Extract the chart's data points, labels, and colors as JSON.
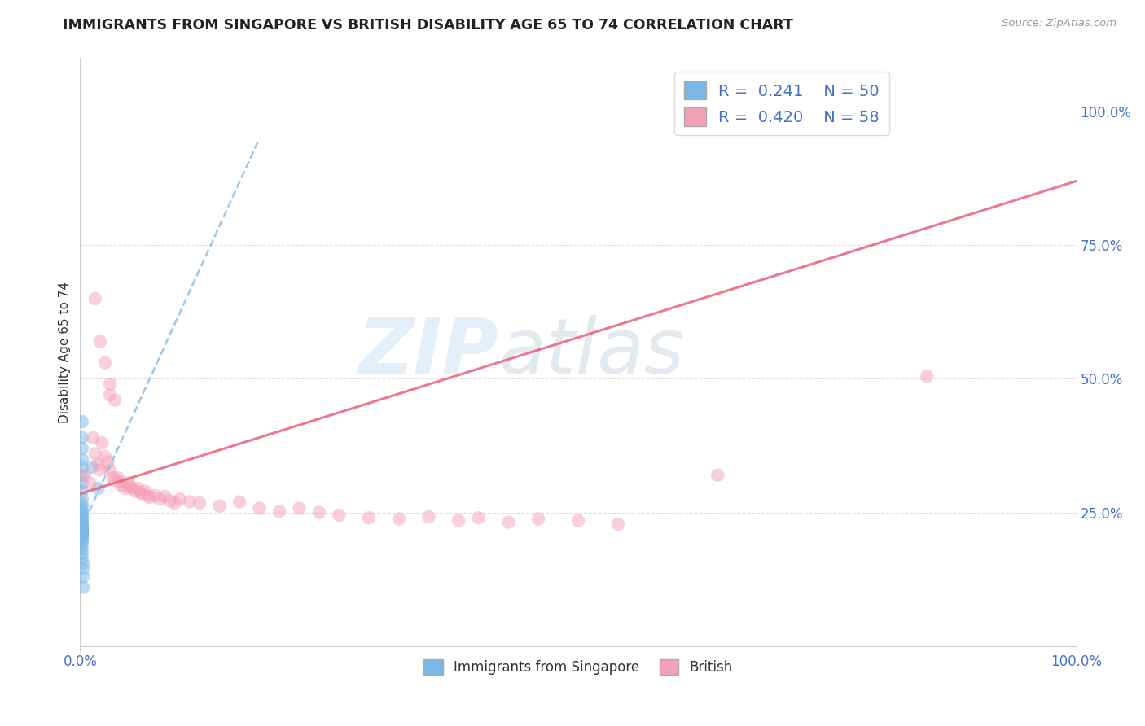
{
  "title": "IMMIGRANTS FROM SINGAPORE VS BRITISH DISABILITY AGE 65 TO 74 CORRELATION CHART",
  "source_text": "Source: ZipAtlas.com",
  "ylabel": "Disability Age 65 to 74",
  "xlim": [
    0.0,
    1.0
  ],
  "ylim": [
    0.0,
    1.1
  ],
  "xtick_positions": [
    0.0,
    1.0
  ],
  "xtick_labels": [
    "0.0%",
    "100.0%"
  ],
  "ytick_positions": [
    0.25,
    0.5,
    0.75,
    1.0
  ],
  "ytick_labels": [
    "25.0%",
    "50.0%",
    "75.0%",
    "100.0%"
  ],
  "legend_R1": "0.241",
  "legend_N1": "50",
  "legend_R2": "0.420",
  "legend_N2": "58",
  "color_blue": "#7ab8e8",
  "color_pink": "#f4a0b8",
  "trendline_blue_color": "#7ab8e8",
  "trendline_pink_color": "#e8607a",
  "watermark_zip": "ZIP",
  "watermark_atlas": "atlas",
  "blue_scatter": [
    [
      0.002,
      0.42
    ],
    [
      0.002,
      0.39
    ],
    [
      0.002,
      0.37
    ],
    [
      0.002,
      0.35
    ],
    [
      0.002,
      0.335
    ],
    [
      0.002,
      0.32
    ],
    [
      0.002,
      0.305
    ],
    [
      0.002,
      0.29
    ],
    [
      0.002,
      0.275
    ],
    [
      0.002,
      0.265
    ],
    [
      0.002,
      0.258
    ],
    [
      0.002,
      0.252
    ],
    [
      0.002,
      0.247
    ],
    [
      0.002,
      0.243
    ],
    [
      0.002,
      0.238
    ],
    [
      0.002,
      0.234
    ],
    [
      0.002,
      0.231
    ],
    [
      0.002,
      0.228
    ],
    [
      0.002,
      0.226
    ],
    [
      0.002,
      0.224
    ],
    [
      0.002,
      0.222
    ],
    [
      0.002,
      0.221
    ],
    [
      0.002,
      0.22
    ],
    [
      0.002,
      0.219
    ],
    [
      0.002,
      0.218
    ],
    [
      0.002,
      0.218
    ],
    [
      0.002,
      0.217
    ],
    [
      0.002,
      0.216
    ],
    [
      0.002,
      0.216
    ],
    [
      0.002,
      0.215
    ],
    [
      0.002,
      0.215
    ],
    [
      0.002,
      0.214
    ],
    [
      0.002,
      0.213
    ],
    [
      0.002,
      0.212
    ],
    [
      0.002,
      0.21
    ],
    [
      0.002,
      0.208
    ],
    [
      0.002,
      0.206
    ],
    [
      0.002,
      0.203
    ],
    [
      0.002,
      0.2
    ],
    [
      0.002,
      0.196
    ],
    [
      0.002,
      0.19
    ],
    [
      0.002,
      0.183
    ],
    [
      0.002,
      0.174
    ],
    [
      0.002,
      0.165
    ],
    [
      0.012,
      0.335
    ],
    [
      0.018,
      0.295
    ],
    [
      0.003,
      0.155
    ],
    [
      0.003,
      0.145
    ],
    [
      0.003,
      0.13
    ],
    [
      0.003,
      0.11
    ]
  ],
  "pink_scatter": [
    [
      0.005,
      0.32
    ],
    [
      0.01,
      0.305
    ],
    [
      0.013,
      0.39
    ],
    [
      0.015,
      0.36
    ],
    [
      0.018,
      0.34
    ],
    [
      0.02,
      0.33
    ],
    [
      0.022,
      0.38
    ],
    [
      0.025,
      0.355
    ],
    [
      0.028,
      0.345
    ],
    [
      0.03,
      0.33
    ],
    [
      0.033,
      0.315
    ],
    [
      0.035,
      0.31
    ],
    [
      0.038,
      0.315
    ],
    [
      0.04,
      0.308
    ],
    [
      0.042,
      0.3
    ],
    [
      0.045,
      0.295
    ],
    [
      0.048,
      0.305
    ],
    [
      0.05,
      0.3
    ],
    [
      0.052,
      0.295
    ],
    [
      0.055,
      0.29
    ],
    [
      0.058,
      0.295
    ],
    [
      0.06,
      0.288
    ],
    [
      0.062,
      0.285
    ],
    [
      0.065,
      0.29
    ],
    [
      0.068,
      0.282
    ],
    [
      0.07,
      0.278
    ],
    [
      0.075,
      0.282
    ],
    [
      0.08,
      0.275
    ],
    [
      0.085,
      0.28
    ],
    [
      0.09,
      0.272
    ],
    [
      0.095,
      0.268
    ],
    [
      0.1,
      0.275
    ],
    [
      0.11,
      0.27
    ],
    [
      0.12,
      0.268
    ],
    [
      0.14,
      0.262
    ],
    [
      0.16,
      0.27
    ],
    [
      0.18,
      0.258
    ],
    [
      0.2,
      0.252
    ],
    [
      0.22,
      0.258
    ],
    [
      0.24,
      0.25
    ],
    [
      0.26,
      0.245
    ],
    [
      0.29,
      0.24
    ],
    [
      0.32,
      0.238
    ],
    [
      0.35,
      0.242
    ],
    [
      0.38,
      0.235
    ],
    [
      0.4,
      0.24
    ],
    [
      0.43,
      0.232
    ],
    [
      0.46,
      0.238
    ],
    [
      0.5,
      0.235
    ],
    [
      0.54,
      0.228
    ],
    [
      0.015,
      0.65
    ],
    [
      0.02,
      0.57
    ],
    [
      0.025,
      0.53
    ],
    [
      0.03,
      0.49
    ],
    [
      0.03,
      0.47
    ],
    [
      0.035,
      0.46
    ],
    [
      0.64,
      0.32
    ],
    [
      0.85,
      0.505
    ]
  ],
  "blue_trend_x": [
    0.0,
    0.18
  ],
  "blue_trend_y": [
    0.215,
    0.95
  ],
  "pink_trend_x": [
    0.0,
    1.0
  ],
  "pink_trend_y": [
    0.285,
    0.87
  ],
  "grid_color": "#e0e0e0",
  "background_color": "#ffffff"
}
